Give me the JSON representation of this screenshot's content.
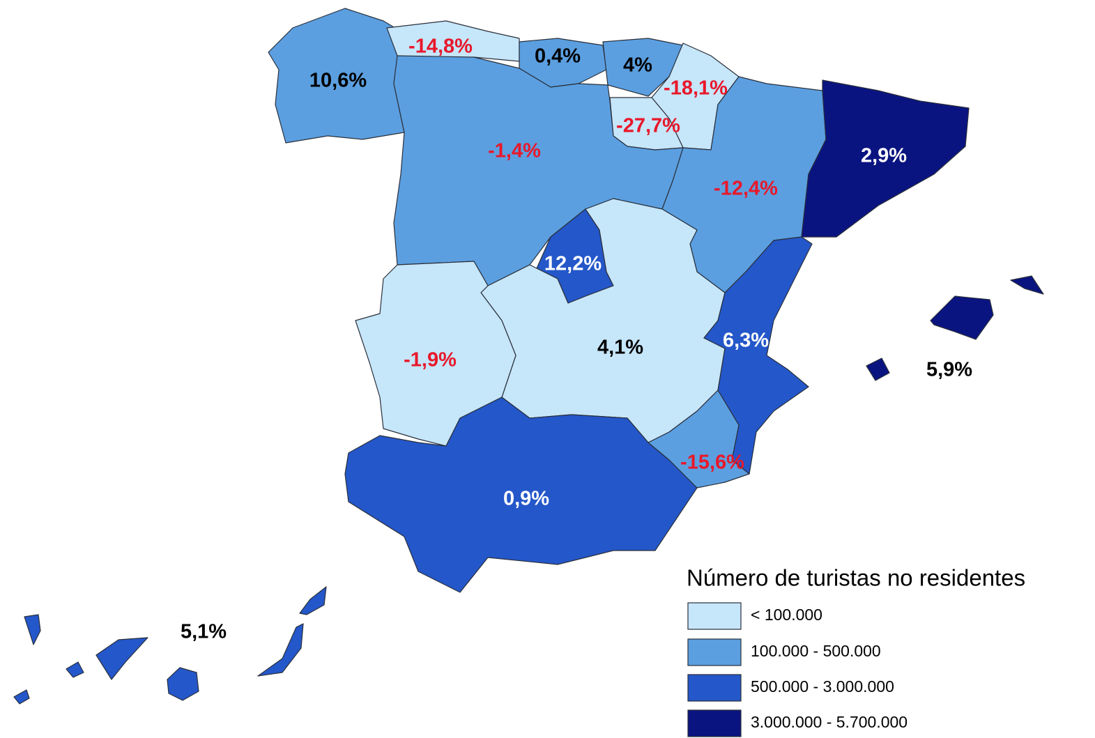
{
  "map": {
    "regions": [
      {
        "label": "10,6%",
        "color": "#5b9fe0",
        "label_color": "#000000"
      },
      {
        "label": "-14,8%",
        "color": "#c6e6fa",
        "label_color": "#e8182a"
      },
      {
        "label": "0,4%",
        "color": "#5b9fe0",
        "label_color": "#000000"
      },
      {
        "label": "4%",
        "color": "#5b9fe0",
        "label_color": "#000000"
      },
      {
        "label": "-18,1%",
        "color": "#c6e6fa",
        "label_color": "#e8182a"
      },
      {
        "label": "-27,7%",
        "color": "#c6e6fa",
        "label_color": "#e8182a"
      },
      {
        "label": "-1,4%",
        "color": "#5b9fe0",
        "label_color": "#e8182a"
      },
      {
        "label": "-12,4%",
        "color": "#5b9fe0",
        "label_color": "#e8182a"
      },
      {
        "label": "2,9%",
        "color": "#0a1480",
        "label_color": "#ffffff"
      },
      {
        "label": "12,2%",
        "color": "#2457c9",
        "label_color": "#ffffff"
      },
      {
        "label": "4,1%",
        "color": "#c6e6fa",
        "label_color": "#000000"
      },
      {
        "label": "-1,9%",
        "color": "#c6e6fa",
        "label_color": "#e8182a"
      },
      {
        "label": "0,9%",
        "color": "#2457c9",
        "label_color": "#ffffff"
      },
      {
        "label": "6,3%",
        "color": "#2457c9",
        "label_color": "#ffffff"
      },
      {
        "label": "-15,6%",
        "color": "#5b9fe0",
        "label_color": "#e8182a"
      },
      {
        "label": "5,9%",
        "color": "#0a1480",
        "label_color": "#000000"
      },
      {
        "label": "5,1%",
        "color": "#2457c9",
        "label_color": "#000000"
      }
    ],
    "legend": {
      "title": "Número de turistas no residentes",
      "items": [
        {
          "label": "< 100.000",
          "color": "#c6e6fa"
        },
        {
          "label": "100.000 - 500.000",
          "color": "#5b9fe0"
        },
        {
          "label": "500.000 - 3.000.000",
          "color": "#2457c9"
        },
        {
          "label": "3.000.000 - 5.700.000",
          "color": "#0a1480"
        }
      ]
    }
  }
}
